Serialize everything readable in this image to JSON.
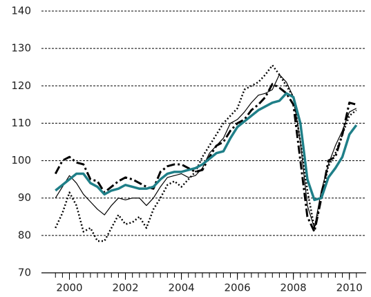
{
  "chart_data": {
    "type": "line",
    "x": [
      1999.5,
      1999.75,
      2000,
      2000.25,
      2000.5,
      2000.75,
      2001,
      2001.25,
      2001.5,
      2001.75,
      2002,
      2002.25,
      2002.5,
      2002.75,
      2003,
      2003.25,
      2003.5,
      2003.75,
      2004,
      2004.25,
      2004.5,
      2004.75,
      2005,
      2005.25,
      2005.5,
      2005.75,
      2006,
      2006.25,
      2006.5,
      2006.75,
      2007,
      2007.25,
      2007.5,
      2007.75,
      2008,
      2008.25,
      2008.5,
      2008.75,
      2009,
      2009.25,
      2009.5,
      2009.75,
      2010,
      2010.25
    ],
    "series": [
      {
        "color": "#000000",
        "width": 1.2,
        "dash": "solid",
        "values": [
          90,
          93,
          96,
          94,
          91,
          89,
          87,
          85.5,
          88,
          90,
          89.5,
          90,
          90,
          88,
          90,
          93,
          95.5,
          96,
          96.5,
          95.5,
          96,
          98,
          102,
          104,
          106,
          110,
          111,
          113,
          115.5,
          117.5,
          118,
          119,
          123,
          121,
          117,
          105,
          88,
          82,
          92,
          99,
          104,
          108,
          113,
          114
        ]
      },
      {
        "color": "#000000",
        "width": 2.5,
        "dash": "dotted",
        "values": [
          82,
          86,
          91.5,
          88,
          81,
          82,
          78.5,
          78.5,
          82,
          85.5,
          83,
          83.5,
          85,
          82,
          87,
          90,
          93.5,
          94.5,
          93,
          95,
          97,
          101,
          104,
          107,
          110,
          112,
          114,
          119,
          120,
          121,
          123,
          125.5,
          123,
          120,
          117,
          105,
          92,
          82,
          90,
          98.5,
          102,
          107,
          112,
          113.5
        ]
      },
      {
        "color": "#000000",
        "width": 3,
        "dash": "dashdot",
        "values": [
          96.5,
          100,
          101,
          99.5,
          99,
          95,
          94.5,
          91.5,
          93,
          94.5,
          95.5,
          95,
          94,
          93,
          92.5,
          97,
          98.5,
          99,
          99,
          98,
          97,
          97.5,
          101,
          104,
          105,
          108,
          110,
          111,
          113.5,
          115,
          117,
          120.5,
          119.5,
          118,
          115,
          100,
          85,
          81,
          90,
          100,
          101,
          107,
          115.5,
          115
        ]
      },
      {
        "color": "#1f7f88",
        "width": 3.5,
        "dash": "solid",
        "values": [
          92,
          93.5,
          95,
          96.5,
          96.5,
          94,
          93,
          91,
          92,
          92.5,
          93.5,
          93,
          92.5,
          92.5,
          93,
          95,
          96.5,
          97,
          97,
          97.5,
          98,
          99,
          100.5,
          102,
          102.5,
          106,
          109,
          110.5,
          112,
          113.5,
          114.5,
          115.5,
          116,
          118,
          117,
          110,
          95,
          89.5,
          90,
          95.5,
          98,
          101,
          107,
          109.5
        ]
      }
    ],
    "xlim": [
      1999,
      2010.6
    ],
    "xticks": [
      2000,
      2002,
      2004,
      2006,
      2008,
      2010
    ],
    "ylim": [
      70,
      140
    ],
    "yticks": [
      70,
      80,
      90,
      100,
      110,
      120,
      130,
      140
    ],
    "grid": true
  }
}
